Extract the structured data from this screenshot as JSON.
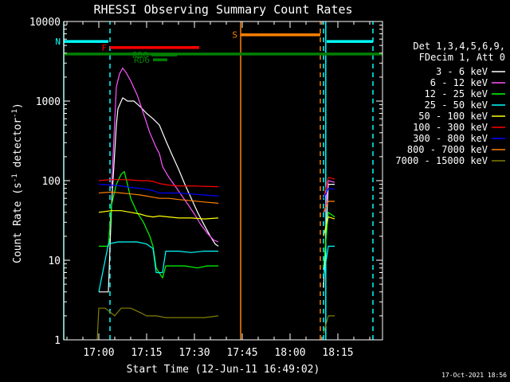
{
  "chart_data": {
    "type": "line",
    "title": "RHESSI Observing Summary Count Rates",
    "xlabel": "Start Time (12-Jun-11 16:49:02)",
    "ylabel_main": "Count Rate (s",
    "ylabel_sup1": "-1",
    "ylabel_mid": " detector",
    "ylabel_sup2": "-1",
    "ylabel_end": ")",
    "ylabel": "Count Rate (s^-1 detector^-1)",
    "x_range_min": [
      0,
      100
    ],
    "x_ticks_min": [
      11,
      26,
      41,
      56,
      71,
      86
    ],
    "x_tick_labels": [
      "17:00",
      "17:15",
      "17:30",
      "17:45",
      "18:00",
      "18:15"
    ],
    "y_scale": "log",
    "ylim": [
      1,
      10000
    ],
    "y_ticks": [
      1,
      10,
      100,
      1000,
      10000
    ],
    "y_tick_labels": [
      "1",
      "10",
      "100",
      "1000",
      "10000"
    ],
    "legend_header": [
      "Det 1,3,4,5,6,9,",
      "FDecim 1, Att 0"
    ],
    "legend_position": "right",
    "series": [
      {
        "name": "3 - 6 keV",
        "color": "#ffffff",
        "points": [
          [
            11.0,
            4
          ],
          [
            14.0,
            4
          ],
          [
            15.0,
            50
          ],
          [
            16.5,
            500
          ],
          [
            17.0,
            800
          ],
          [
            18.5,
            1100
          ],
          [
            20,
            1000
          ],
          [
            22,
            1000
          ],
          [
            24,
            850
          ],
          [
            26,
            700
          ],
          [
            28,
            600
          ],
          [
            30,
            500
          ],
          [
            32,
            320
          ],
          [
            34,
            210
          ],
          [
            36,
            140
          ],
          [
            38,
            90
          ],
          [
            40,
            60
          ],
          [
            42,
            40
          ],
          [
            44,
            28
          ],
          [
            46,
            20
          ],
          [
            47.5,
            16
          ],
          [
            48.5,
            15
          ],
          [
            48.5,
            null
          ],
          [
            81.5,
            null
          ],
          [
            81.5,
            4.5
          ],
          [
            83.0,
            90
          ],
          [
            85.0,
            90
          ],
          [
            85.0,
            null
          ]
        ]
      },
      {
        "name": "6 - 12 keV",
        "color": "#ff55ff",
        "points": [
          [
            15.0,
            80
          ],
          [
            16.5,
            1500
          ],
          [
            17.5,
            2200
          ],
          [
            18.5,
            2600
          ],
          [
            19.5,
            2300
          ],
          [
            21,
            1800
          ],
          [
            23,
            1200
          ],
          [
            25,
            700
          ],
          [
            27,
            400
          ],
          [
            29,
            260
          ],
          [
            30,
            220
          ],
          [
            31,
            150
          ],
          [
            33,
            110
          ],
          [
            35,
            85
          ],
          [
            37,
            65
          ],
          [
            39,
            50
          ],
          [
            41,
            38
          ],
          [
            43,
            28
          ],
          [
            45,
            22
          ],
          [
            47,
            18
          ],
          [
            48.5,
            17
          ],
          [
            48.5,
            null
          ],
          [
            82.0,
            null
          ],
          [
            82.0,
            40
          ],
          [
            83.0,
            100
          ],
          [
            85.0,
            95
          ],
          [
            85.0,
            null
          ]
        ]
      },
      {
        "name": "12 - 25 keV",
        "color": "#00ff00",
        "points": [
          [
            11.0,
            15
          ],
          [
            14.0,
            15
          ],
          [
            15.0,
            50
          ],
          [
            16.5,
            90
          ],
          [
            18.0,
            120
          ],
          [
            19.0,
            130
          ],
          [
            20,
            90
          ],
          [
            21,
            60
          ],
          [
            23,
            40
          ],
          [
            25,
            30
          ],
          [
            27,
            20
          ],
          [
            28,
            15
          ],
          [
            29,
            8
          ],
          [
            31,
            6
          ],
          [
            32,
            8.5
          ],
          [
            34,
            8.5
          ],
          [
            38,
            8.5
          ],
          [
            42,
            8
          ],
          [
            45,
            8.5
          ],
          [
            48.5,
            8.5
          ],
          [
            48.5,
            null
          ],
          [
            81.5,
            null
          ],
          [
            81.5,
            8
          ],
          [
            83.0,
            40
          ],
          [
            85.0,
            35
          ],
          [
            85.0,
            null
          ]
        ]
      },
      {
        "name": "25 - 50 keV",
        "color": "#00ffff",
        "points": [
          [
            11.0,
            4
          ],
          [
            14.0,
            16
          ],
          [
            17,
            17
          ],
          [
            20,
            17
          ],
          [
            23,
            17
          ],
          [
            26,
            16
          ],
          [
            28,
            14
          ],
          [
            29,
            7
          ],
          [
            31,
            7
          ],
          [
            32,
            13
          ],
          [
            36,
            13
          ],
          [
            40,
            12.5
          ],
          [
            44,
            13
          ],
          [
            48.5,
            13
          ],
          [
            48.5,
            null
          ],
          [
            81.5,
            null
          ],
          [
            81.5,
            6
          ],
          [
            83.0,
            15
          ],
          [
            85.0,
            15
          ],
          [
            85.0,
            null
          ]
        ]
      },
      {
        "name": "50 - 100 keV",
        "color": "#ffff00",
        "points": [
          [
            11.0,
            40
          ],
          [
            15,
            42
          ],
          [
            18,
            42
          ],
          [
            21,
            40
          ],
          [
            24,
            38
          ],
          [
            26,
            36
          ],
          [
            28,
            35
          ],
          [
            30,
            36
          ],
          [
            33,
            35
          ],
          [
            36,
            34
          ],
          [
            40,
            34
          ],
          [
            44,
            33
          ],
          [
            48.5,
            34
          ],
          [
            48.5,
            null
          ],
          [
            81.5,
            null
          ],
          [
            81.5,
            20
          ],
          [
            83.0,
            35
          ],
          [
            85.0,
            33
          ],
          [
            85.0,
            null
          ]
        ]
      },
      {
        "name": "100 - 300 keV",
        "color": "#ff0000",
        "points": [
          [
            11.0,
            100
          ],
          [
            15,
            103
          ],
          [
            18,
            103
          ],
          [
            21,
            102
          ],
          [
            24,
            100
          ],
          [
            26,
            100
          ],
          [
            28,
            98
          ],
          [
            30,
            92
          ],
          [
            33,
            88
          ],
          [
            36,
            86
          ],
          [
            40,
            86
          ],
          [
            44,
            85
          ],
          [
            48.5,
            84
          ],
          [
            48.5,
            null
          ],
          [
            81.5,
            null
          ],
          [
            81.5,
            60
          ],
          [
            83.0,
            110
          ],
          [
            85.0,
            105
          ],
          [
            85.0,
            null
          ]
        ]
      },
      {
        "name": "300 - 800 keV",
        "color": "#0000ff",
        "points": [
          [
            11.0,
            90
          ],
          [
            15,
            88
          ],
          [
            18,
            86
          ],
          [
            21,
            82
          ],
          [
            24,
            80
          ],
          [
            26,
            78
          ],
          [
            28,
            75
          ],
          [
            30,
            70
          ],
          [
            33,
            70
          ],
          [
            36,
            70
          ],
          [
            40,
            68
          ],
          [
            44,
            66
          ],
          [
            48.5,
            64
          ],
          [
            48.5,
            null
          ],
          [
            81.5,
            null
          ],
          [
            81.5,
            60
          ],
          [
            83.0,
            80
          ],
          [
            85.0,
            78
          ],
          [
            85.0,
            null
          ]
        ]
      },
      {
        "name": "800 - 7000 keV",
        "color": "#ff8000",
        "points": [
          [
            11.0,
            70
          ],
          [
            15,
            72
          ],
          [
            18,
            70
          ],
          [
            21,
            68
          ],
          [
            24,
            66
          ],
          [
            26,
            64
          ],
          [
            28,
            62
          ],
          [
            30,
            60
          ],
          [
            33,
            60
          ],
          [
            36,
            58
          ],
          [
            40,
            56
          ],
          [
            44,
            54
          ],
          [
            48.5,
            52
          ],
          [
            48.5,
            null
          ],
          [
            81.5,
            null
          ],
          [
            81.5,
            40
          ],
          [
            83.0,
            55
          ],
          [
            85.0,
            55
          ],
          [
            85.0,
            null
          ]
        ]
      },
      {
        "name": "7000 - 15000 keV",
        "color": "#808000",
        "points": [
          [
            10.5,
            1
          ],
          [
            11.0,
            2.5
          ],
          [
            13,
            2.5
          ],
          [
            16,
            2
          ],
          [
            18,
            2.5
          ],
          [
            21,
            2.5
          ],
          [
            24,
            2.2
          ],
          [
            26,
            2
          ],
          [
            29,
            2
          ],
          [
            32,
            1.9
          ],
          [
            36,
            1.9
          ],
          [
            40,
            1.9
          ],
          [
            44,
            1.9
          ],
          [
            48.5,
            2
          ],
          [
            48.5,
            null
          ],
          [
            81.5,
            null
          ],
          [
            81.5,
            1.2
          ],
          [
            83.0,
            2
          ],
          [
            85.0,
            2
          ],
          [
            85.0,
            null
          ]
        ]
      }
    ],
    "flag_bars": [
      {
        "label": "N",
        "color": "#00ffff",
        "x0": 0,
        "x1": 14,
        "y": 5600
      },
      {
        "label": "",
        "color": "#00ffff",
        "x0": 82.5,
        "x1": 97,
        "y": 5600
      },
      {
        "label": "F",
        "color": "#ff0000",
        "x0": 14.5,
        "x1": 42.5,
        "y": 4700
      },
      {
        "label": "S",
        "color": "#ff8000",
        "x0": 55.5,
        "x1": 80.5,
        "y": 6800
      },
      {
        "label": "",
        "color": "#008000",
        "x0": 0,
        "x1": 100,
        "y": 3900
      },
      {
        "label": "RD0",
        "color": "#008000",
        "x0": 27.5,
        "x1": 35.5,
        "y": 3800
      },
      {
        "label": "RD6",
        "color": "#008000",
        "x0": 28,
        "x1": 32.5,
        "y": 3300
      }
    ],
    "vertical_markers": [
      {
        "x": 0,
        "color": "#00ffff",
        "style": "solid"
      },
      {
        "x": 14.5,
        "color": "#00ffff",
        "style": "dashed"
      },
      {
        "x": 55.5,
        "color": "#ff8000",
        "style": "solid"
      },
      {
        "x": 80.5,
        "color": "#ff8000",
        "style": "dashed"
      },
      {
        "x": 81.5,
        "color": "#00ffff",
        "style": "dashed"
      },
      {
        "x": 82.2,
        "color": "#00ffff",
        "style": "solid"
      },
      {
        "x": 97.0,
        "color": "#00ffff",
        "style": "dashed"
      }
    ],
    "footer_date": "17-Oct-2021 18:56"
  }
}
